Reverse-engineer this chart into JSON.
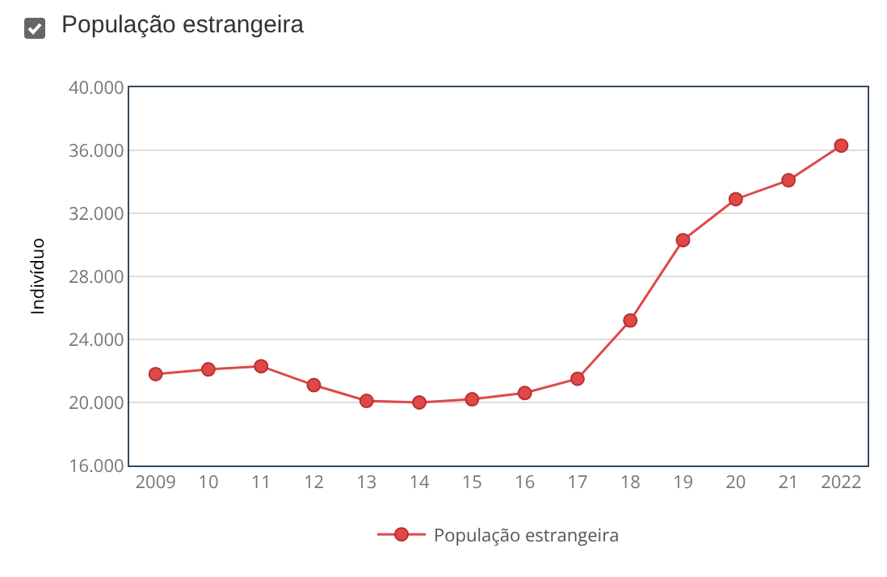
{
  "chart_data": {
    "type": "line",
    "annotations": [
      "População estrangeira"
    ],
    "ylabel": "Indivíduo",
    "categories": [
      "2009",
      "10",
      "11",
      "12",
      "13",
      "14",
      "15",
      "16",
      "17",
      "18",
      "19",
      "20",
      "21",
      "2022"
    ],
    "series": [
      {
        "name": "População estrangeira",
        "color": "#e04848",
        "values": [
          21800,
          22100,
          22300,
          21100,
          20100,
          20000,
          20200,
          20600,
          21500,
          25200,
          30300,
          32900,
          34100,
          36300
        ]
      }
    ],
    "ylim": [
      16000,
      40000
    ],
    "yticks": [
      {
        "value": 16000,
        "label": "16.000"
      },
      {
        "value": 20000,
        "label": "20.000"
      },
      {
        "value": 24000,
        "label": "24.000"
      },
      {
        "value": 28000,
        "label": "28.000"
      },
      {
        "value": 32000,
        "label": "32.000"
      },
      {
        "value": 36000,
        "label": "36.000"
      },
      {
        "value": 40000,
        "label": "40.000"
      }
    ],
    "grid": "y",
    "legend": "bottom",
    "marker": "circle",
    "line_style": "solid"
  }
}
